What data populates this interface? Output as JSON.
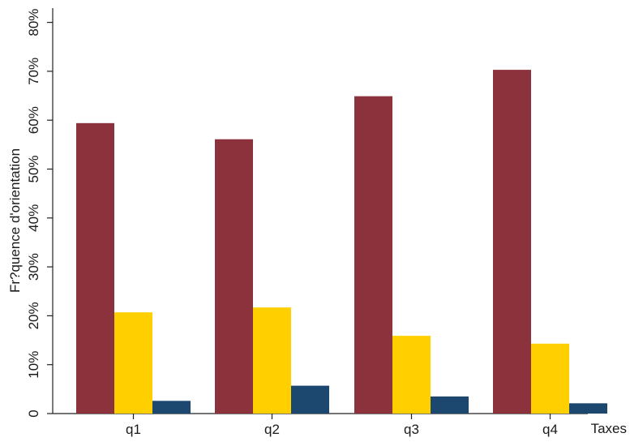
{
  "chart_data": {
    "type": "bar",
    "title": "",
    "xlabel": "Taxes",
    "ylabel": "Fr?quence d'orientation",
    "categories": [
      "q1",
      "q2",
      "q3",
      "q4"
    ],
    "series": [
      {
        "color": "#8b323c",
        "values": [
          59.4,
          56.1,
          64.9,
          70.3
        ]
      },
      {
        "color": "#ffcf00",
        "values": [
          20.7,
          21.7,
          15.9,
          14.3
        ]
      },
      {
        "color": "#1c4870",
        "values": [
          2.6,
          5.7,
          3.5,
          2.1
        ]
      }
    ],
    "ylim": [
      0,
      80
    ],
    "yticks": [
      0,
      10,
      20,
      30,
      40,
      50,
      60,
      70,
      80
    ],
    "ytick_labels": [
      "0",
      "10%",
      "20%",
      "30%",
      "40%",
      "50%",
      "60%",
      "70%",
      "80%"
    ],
    "grid": false,
    "legend": "none"
  }
}
